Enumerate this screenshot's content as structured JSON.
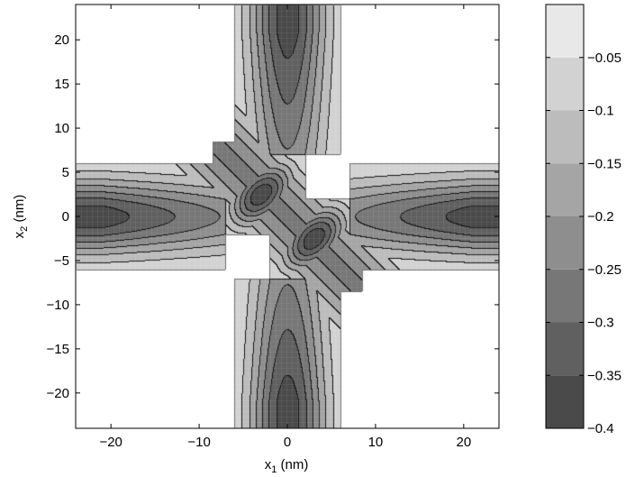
{
  "chart_data": {
    "type": "heatmap",
    "subtype": "filled-contour",
    "title": "",
    "xlabel": {
      "main": "x",
      "subscript": "1",
      "unit": " (nm)"
    },
    "ylabel": {
      "main": "x",
      "subscript": "2",
      "unit": " (nm)"
    },
    "xlim": [
      -24,
      24
    ],
    "ylim": [
      -24,
      24
    ],
    "xticks": [
      -20,
      -10,
      0,
      10,
      20
    ],
    "yticks": [
      -20,
      -15,
      -10,
      -5,
      0,
      5,
      10,
      15,
      20
    ],
    "xtick_labels": [
      "−20",
      "−10",
      "0",
      "10",
      "20"
    ],
    "ytick_labels": [
      "−20",
      "−15",
      "−10",
      "−5",
      "0",
      "5",
      "10",
      "15",
      "20"
    ],
    "grid": false,
    "colormap": "gray",
    "colorbar": {
      "range": [
        -0.4,
        0
      ],
      "levels": [
        -0.4,
        -0.35,
        -0.3,
        -0.25,
        -0.2,
        -0.15,
        -0.1,
        -0.05,
        0
      ],
      "tick_values": [
        -0.4,
        -0.35,
        -0.3,
        -0.25,
        -0.2,
        -0.15,
        -0.1,
        -0.05
      ],
      "tick_labels": [
        "−0.4",
        "−0.35",
        "−0.3",
        "−0.25",
        "−0.2",
        "−0.15",
        "−0.1",
        "−0.05"
      ],
      "band_colors": [
        "#4a4a4a",
        "#606060",
        "#777777",
        "#8e8e8e",
        "#a5a5a5",
        "#bcbcbc",
        "#d2d2d2",
        "#e8e8e8",
        "#ffffff"
      ]
    },
    "features": {
      "channels": [
        "left (x2≈0, x1<−7)",
        "right (x2≈0, x1>7)",
        "top (x1≈0, x2>7)",
        "bottom (x1≈0, x2<−7)"
      ],
      "channel_half_width_nm": 6,
      "minima": [
        {
          "x": -3,
          "y": 2.5,
          "value": -0.35
        },
        {
          "x": 3,
          "y": -2.5,
          "value": -0.35
        },
        {
          "x": -22,
          "y": 0,
          "value": -0.35
        },
        {
          "x": 22,
          "y": 0,
          "value": -0.35
        },
        {
          "x": 0,
          "y": 20,
          "value": -0.35
        },
        {
          "x": 0,
          "y": -20,
          "value": -0.35
        }
      ],
      "saddles": [
        {
          "x": -8.5,
          "y": 0.5
        },
        {
          "x": 8.5,
          "y": -0.5
        },
        {
          "x": 0,
          "y": 8.5
        },
        {
          "x": 0,
          "y": -8.5
        }
      ]
    }
  }
}
